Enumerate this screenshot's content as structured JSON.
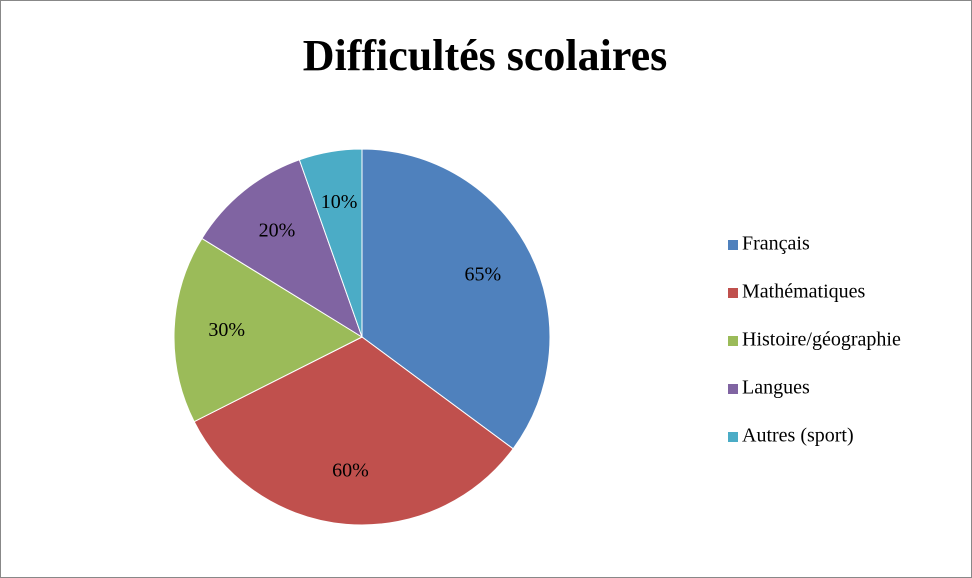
{
  "chart_data": {
    "type": "pie",
    "title": "Difficultés scolaires",
    "categories": [
      "Français",
      "Mathématiques",
      "Histoire/géographie",
      "Langues",
      "Autres (sport)"
    ],
    "values": [
      65,
      60,
      30,
      20,
      10
    ],
    "value_labels": [
      "65%",
      "60%",
      "30%",
      "20%",
      "10%"
    ],
    "colors": [
      "#4f81bd",
      "#c0504d",
      "#9bbb59",
      "#8064a2",
      "#4bacc6"
    ],
    "legend": "right"
  }
}
